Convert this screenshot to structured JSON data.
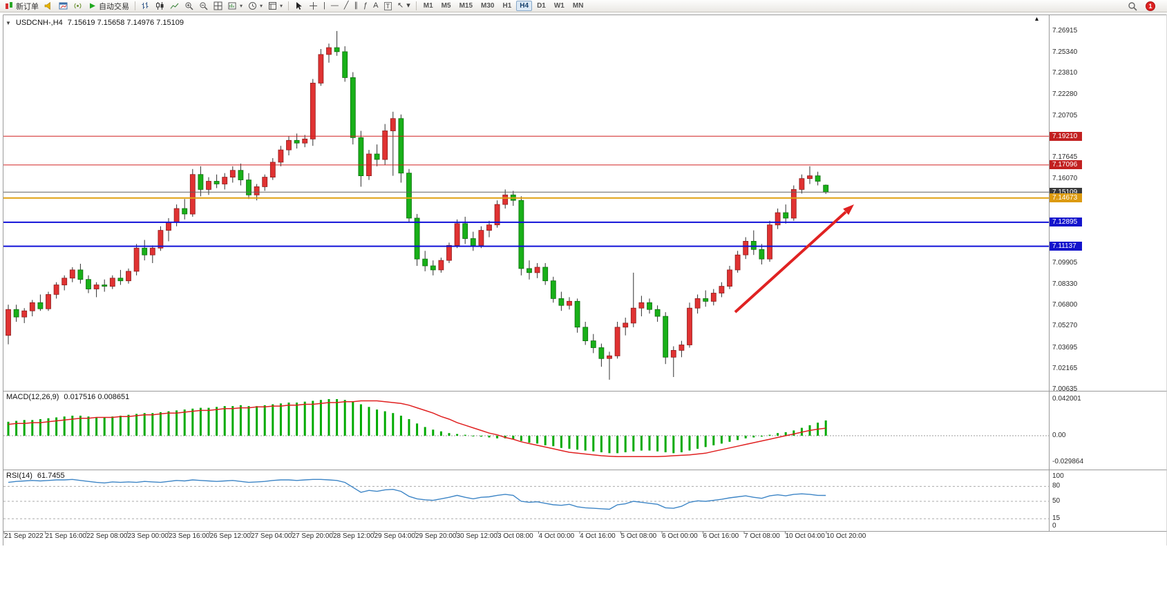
{
  "toolbar": {
    "new_order_label": "新订单",
    "autotrading_label": "自动交易",
    "timeframes": [
      "M1",
      "M5",
      "M15",
      "M30",
      "H1",
      "H4",
      "D1",
      "W1",
      "MN"
    ],
    "active_timeframe": "H4",
    "notification_count": "1"
  },
  "glyphs": {
    "dropdown": "▾",
    "collapse_marker": "▼",
    "shift_marker": "▴",
    "vertical_line_tool": "|",
    "horizontal_line_tool": "—",
    "trendline_tool": "╱",
    "channel_tool": "∥",
    "fibonacci_tool": "ƒ",
    "text_tool": "A",
    "label_tool": "T",
    "arrows_tool": "↖"
  },
  "chart": {
    "symbol_period": "USDCNH-,H4",
    "ohlc_text": "7.15619 7.15658 7.14976 7.15109",
    "price_axis": {
      "labels": [
        7.26915,
        7.2534,
        7.2381,
        7.2228,
        7.20705,
        7.17645,
        7.1607,
        7.09905,
        7.0833,
        7.068,
        7.0527,
        7.03695,
        7.02165,
        7.00635
      ]
    },
    "badges": [
      {
        "text": "7.19210",
        "price": 7.1921,
        "color": "#c22020"
      },
      {
        "text": "7.17096",
        "price": 7.17096,
        "color": "#c22020"
      },
      {
        "text": "7.15109",
        "price": 7.15109,
        "color": "#3a3a3a"
      },
      {
        "text": "7.14673",
        "price": 7.14673,
        "color": "#dc9a10"
      },
      {
        "text": "7.12895",
        "price": 7.12895,
        "color": "#1414cc"
      },
      {
        "text": "7.11137",
        "price": 7.11137,
        "color": "#1414cc"
      }
    ],
    "hlines": [
      {
        "price": 7.1921,
        "color": "#d02020",
        "width": 1
      },
      {
        "price": 7.17096,
        "color": "#d02020",
        "width": 1
      },
      {
        "price": 7.15109,
        "color": "#606060",
        "width": 1
      },
      {
        "price": 7.14673,
        "color": "#e0a010",
        "width": 2
      },
      {
        "price": 7.12895,
        "color": "#1010d8",
        "width": 2
      },
      {
        "price": 7.11137,
        "color": "#1010d8",
        "width": 2
      }
    ],
    "time_labels": [
      "21 Sep 2022",
      "21 Sep 16:00",
      "22 Sep 08:00",
      "23 Sep 00:00",
      "23 Sep 16:00",
      "26 Sep 12:00",
      "27 Sep 04:00",
      "27 Sep 20:00",
      "28 Sep 12:00",
      "29 Sep 04:00",
      "29 Sep 20:00",
      "30 Sep 12:00",
      "3 Oct 08:00",
      "4 Oct 00:00",
      "4 Oct 16:00",
      "5 Oct 08:00",
      "6 Oct 00:00",
      "6 Oct 16:00",
      "7 Oct 08:00",
      "10 Oct 04:00",
      "10 Oct 20:00"
    ],
    "colors": {
      "up": "#e03232",
      "down": "#18b018",
      "up_border": "#8e1c1c",
      "down_border": "#0e6e0e",
      "wick": "#303030",
      "arrow": "#e02222",
      "macd_bar": "#00aa00",
      "macd_signal": "#e02020",
      "rsi_line": "#3d85c6"
    }
  },
  "chart_data": {
    "type": "candlestick",
    "symbol": "USDCNH-",
    "timeframe": "H4",
    "candles": [
      [
        7.046,
        7.0685,
        7.0395,
        7.065
      ],
      [
        7.065,
        7.0685,
        7.056,
        7.0595
      ],
      [
        7.0595,
        7.066,
        7.055,
        7.064
      ],
      [
        7.064,
        7.072,
        7.06,
        7.07
      ],
      [
        7.07,
        7.076,
        7.064,
        7.0655
      ],
      [
        7.0655,
        7.078,
        7.064,
        7.076
      ],
      [
        7.076,
        7.085,
        7.073,
        7.083
      ],
      [
        7.083,
        7.09,
        7.079,
        7.088
      ],
      [
        7.088,
        7.096,
        7.085,
        7.094
      ],
      [
        7.094,
        7.0985,
        7.084,
        7.087
      ],
      [
        7.087,
        7.09,
        7.077,
        7.08
      ],
      [
        7.08,
        7.085,
        7.074,
        7.083
      ],
      [
        7.083,
        7.087,
        7.078,
        7.082
      ],
      [
        7.082,
        7.09,
        7.08,
        7.088
      ],
      [
        7.088,
        7.094,
        7.083,
        7.086
      ],
      [
        7.086,
        7.095,
        7.084,
        7.093
      ],
      [
        7.093,
        7.113,
        7.09,
        7.11
      ],
      [
        7.11,
        7.116,
        7.101,
        7.105
      ],
      [
        7.105,
        7.112,
        7.099,
        7.11
      ],
      [
        7.11,
        7.126,
        7.108,
        7.123
      ],
      [
        7.123,
        7.132,
        7.115,
        7.129
      ],
      [
        7.129,
        7.142,
        7.126,
        7.139
      ],
      [
        7.139,
        7.146,
        7.131,
        7.135
      ],
      [
        7.135,
        7.168,
        7.133,
        7.164
      ],
      [
        7.164,
        7.17,
        7.148,
        7.153
      ],
      [
        7.153,
        7.162,
        7.149,
        7.159
      ],
      [
        7.159,
        7.164,
        7.154,
        7.157
      ],
      [
        7.157,
        7.165,
        7.153,
        7.162
      ],
      [
        7.162,
        7.17,
        7.158,
        7.167
      ],
      [
        7.167,
        7.172,
        7.156,
        7.16
      ],
      [
        7.16,
        7.165,
        7.146,
        7.149
      ],
      [
        7.149,
        7.157,
        7.145,
        7.155
      ],
      [
        7.155,
        7.164,
        7.152,
        7.162
      ],
      [
        7.162,
        7.176,
        7.16,
        7.173
      ],
      [
        7.173,
        7.185,
        7.17,
        7.182
      ],
      [
        7.182,
        7.192,
        7.178,
        7.189
      ],
      [
        7.189,
        7.194,
        7.183,
        7.187
      ],
      [
        7.187,
        7.193,
        7.184,
        7.19
      ],
      [
        7.19,
        7.234,
        7.185,
        7.231
      ],
      [
        7.231,
        7.256,
        7.229,
        7.252
      ],
      [
        7.252,
        7.26,
        7.246,
        7.257
      ],
      [
        7.257,
        7.2692,
        7.251,
        7.254
      ],
      [
        7.254,
        7.258,
        7.232,
        7.235
      ],
      [
        7.235,
        7.239,
        7.186,
        7.191
      ],
      [
        7.191,
        7.196,
        7.155,
        7.163
      ],
      [
        7.163,
        7.182,
        7.16,
        7.179
      ],
      [
        7.179,
        7.186,
        7.17,
        7.175
      ],
      [
        7.175,
        7.201,
        7.171,
        7.196
      ],
      [
        7.196,
        7.21,
        7.163,
        7.205
      ],
      [
        7.205,
        7.208,
        7.158,
        7.165
      ],
      [
        7.165,
        7.168,
        7.129,
        7.132
      ],
      [
        7.132,
        7.135,
        7.097,
        7.102
      ],
      [
        7.102,
        7.108,
        7.093,
        7.097
      ],
      [
        7.097,
        7.101,
        7.09,
        7.094
      ],
      [
        7.094,
        7.103,
        7.092,
        7.101
      ],
      [
        7.101,
        7.114,
        7.099,
        7.112
      ],
      [
        7.112,
        7.131,
        7.11,
        7.128
      ],
      [
        7.128,
        7.133,
        7.113,
        7.117
      ],
      [
        7.117,
        7.122,
        7.108,
        7.112
      ],
      [
        7.112,
        7.126,
        7.11,
        7.123
      ],
      [
        7.123,
        7.13,
        7.118,
        7.127
      ],
      [
        7.127,
        7.145,
        7.125,
        7.142
      ],
      [
        7.142,
        7.153,
        7.139,
        7.149
      ],
      [
        7.149,
        7.152,
        7.141,
        7.145
      ],
      [
        7.145,
        7.148,
        7.09,
        7.095
      ],
      [
        7.095,
        7.101,
        7.087,
        7.092
      ],
      [
        7.092,
        7.099,
        7.088,
        7.096
      ],
      [
        7.096,
        7.099,
        7.083,
        7.086
      ],
      [
        7.086,
        7.089,
        7.07,
        7.073
      ],
      [
        7.073,
        7.078,
        7.064,
        7.068
      ],
      [
        7.068,
        7.074,
        7.065,
        7.071
      ],
      [
        7.071,
        7.073,
        7.048,
        7.052
      ],
      [
        7.052,
        7.056,
        7.039,
        7.042
      ],
      [
        7.042,
        7.047,
        7.033,
        7.037
      ],
      [
        7.037,
        7.04,
        7.023,
        7.029
      ],
      [
        7.029,
        7.034,
        7.0135,
        7.031
      ],
      [
        7.031,
        7.056,
        7.029,
        7.052
      ],
      [
        7.052,
        7.059,
        7.046,
        7.055
      ],
      [
        7.055,
        7.092,
        7.052,
        7.066
      ],
      [
        7.066,
        7.075,
        7.06,
        7.07
      ],
      [
        7.07,
        7.073,
        7.062,
        7.065
      ],
      [
        7.065,
        7.068,
        7.056,
        7.06
      ],
      [
        7.06,
        7.063,
        7.025,
        7.03
      ],
      [
        7.03,
        7.038,
        7.0155,
        7.035
      ],
      [
        7.035,
        7.042,
        7.03,
        7.039
      ],
      [
        7.039,
        7.07,
        7.037,
        7.066
      ],
      [
        7.066,
        7.076,
        7.062,
        7.073
      ],
      [
        7.073,
        7.079,
        7.067,
        7.071
      ],
      [
        7.071,
        7.08,
        7.068,
        7.077
      ],
      [
        7.077,
        7.085,
        7.074,
        7.082
      ],
      [
        7.082,
        7.097,
        7.08,
        7.094
      ],
      [
        7.094,
        7.108,
        7.092,
        7.105
      ],
      [
        7.105,
        7.118,
        7.102,
        7.115
      ],
      [
        7.115,
        7.123,
        7.105,
        7.109
      ],
      [
        7.109,
        7.113,
        7.098,
        7.102
      ],
      [
        7.102,
        7.13,
        7.1,
        7.127
      ],
      [
        7.127,
        7.139,
        7.124,
        7.136
      ],
      [
        7.136,
        7.142,
        7.128,
        7.132
      ],
      [
        7.132,
        7.156,
        7.13,
        7.153
      ],
      [
        7.153,
        7.164,
        7.15,
        7.161
      ],
      [
        7.161,
        7.17,
        7.157,
        7.163
      ],
      [
        7.163,
        7.166,
        7.156,
        7.159
      ],
      [
        7.15619,
        7.15658,
        7.14976,
        7.15109
      ]
    ],
    "macd": {
      "label": "MACD(12,26,9)",
      "values_text": "0.017516 0.008651",
      "scale_labels": [
        "0.042001",
        "0.00",
        "-0.029864"
      ],
      "scale_values": [
        0.042001,
        0,
        -0.029864
      ],
      "histogram": [
        0.016,
        0.017,
        0.018,
        0.018,
        0.019,
        0.02,
        0.021,
        0.022,
        0.023,
        0.023,
        0.022,
        0.021,
        0.021,
        0.022,
        0.023,
        0.024,
        0.025,
        0.026,
        0.026,
        0.027,
        0.028,
        0.029,
        0.03,
        0.031,
        0.032,
        0.032,
        0.033,
        0.034,
        0.034,
        0.035,
        0.034,
        0.034,
        0.035,
        0.036,
        0.037,
        0.038,
        0.038,
        0.039,
        0.04,
        0.041,
        0.042,
        0.042,
        0.041,
        0.039,
        0.036,
        0.033,
        0.03,
        0.028,
        0.026,
        0.023,
        0.019,
        0.014,
        0.01,
        0.007,
        0.005,
        0.003,
        0.002,
        0.001,
        0,
        -0.001,
        -0.002,
        -0.003,
        -0.003,
        -0.004,
        -0.006,
        -0.008,
        -0.009,
        -0.011,
        -0.012,
        -0.014,
        -0.015,
        -0.016,
        -0.017,
        -0.018,
        -0.019,
        -0.02,
        -0.02,
        -0.019,
        -0.018,
        -0.017,
        -0.017,
        -0.018,
        -0.019,
        -0.02,
        -0.019,
        -0.017,
        -0.015,
        -0.013,
        -0.011,
        -0.009,
        -0.007,
        -0.005,
        -0.003,
        -0.002,
        -0.001,
        0.001,
        0.003,
        0.004,
        0.006,
        0.009,
        0.012,
        0.015,
        0.017516
      ],
      "signal": [
        0.013,
        0.014,
        0.014,
        0.015,
        0.015,
        0.016,
        0.017,
        0.018,
        0.019,
        0.02,
        0.02,
        0.021,
        0.021,
        0.021,
        0.022,
        0.022,
        0.023,
        0.024,
        0.024,
        0.025,
        0.026,
        0.026,
        0.027,
        0.028,
        0.029,
        0.029,
        0.03,
        0.031,
        0.031,
        0.032,
        0.032,
        0.033,
        0.033,
        0.034,
        0.034,
        0.035,
        0.035,
        0.036,
        0.036,
        0.037,
        0.038,
        0.038,
        0.039,
        0.039,
        0.04,
        0.04,
        0.04,
        0.039,
        0.038,
        0.037,
        0.035,
        0.032,
        0.029,
        0.026,
        0.022,
        0.019,
        0.015,
        0.012,
        0.009,
        0.006,
        0.003,
        0.001,
        -0.002,
        -0.004,
        -0.007,
        -0.009,
        -0.011,
        -0.013,
        -0.015,
        -0.017,
        -0.019,
        -0.02,
        -0.021,
        -0.022,
        -0.023,
        -0.0235,
        -0.024,
        -0.024,
        -0.024,
        -0.024,
        -0.024,
        -0.024,
        -0.0235,
        -0.023,
        -0.0225,
        -0.022,
        -0.021,
        -0.02,
        -0.018,
        -0.016,
        -0.014,
        -0.012,
        -0.01,
        -0.008,
        -0.006,
        -0.004,
        -0.002,
        0,
        0.002,
        0.004,
        0.006,
        0.0075,
        0.008651
      ]
    },
    "rsi": {
      "label": "RSI(14)",
      "value_text": "61.7455",
      "scale_labels": [
        "100",
        "80",
        "50",
        "15",
        "0"
      ],
      "scale_values": [
        100,
        80,
        50,
        15,
        0
      ],
      "levels": [
        80,
        50,
        15
      ],
      "values": [
        88,
        90,
        91,
        92,
        91,
        92,
        93,
        93,
        94,
        92,
        90,
        88,
        87,
        89,
        88,
        89,
        88,
        90,
        89,
        88,
        90,
        92,
        91,
        93,
        92,
        91,
        90,
        91,
        92,
        90,
        88,
        89,
        90,
        92,
        93,
        93,
        92,
        93,
        94,
        94,
        93,
        92,
        88,
        78,
        68,
        72,
        70,
        73,
        74,
        70,
        60,
        55,
        53,
        52,
        55,
        58,
        62,
        58,
        55,
        58,
        59,
        62,
        64,
        62,
        50,
        48,
        49,
        46,
        43,
        42,
        44,
        39,
        37,
        36,
        35,
        34,
        43,
        45,
        50,
        48,
        46,
        44,
        37,
        36,
        40,
        48,
        51,
        50,
        52,
        54,
        57,
        59,
        61,
        58,
        56,
        61,
        63,
        61,
        64,
        65,
        64,
        62,
        61.7455
      ]
    }
  }
}
